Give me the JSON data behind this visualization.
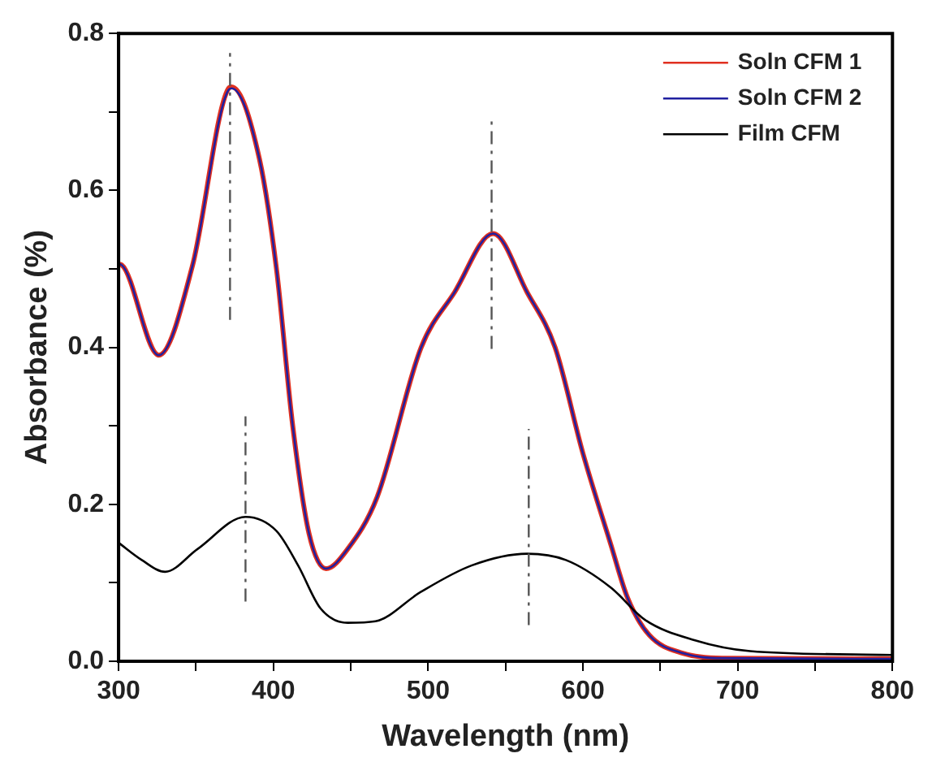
{
  "chart_data": {
    "type": "line",
    "xlabel": "Wavelength (nm)",
    "ylabel": "Absorbance (%)",
    "xlim": [
      300,
      800
    ],
    "xticks": [
      300,
      {
        "value": 350,
        "label": null
      },
      400,
      {
        "value": 450,
        "label": null
      },
      500,
      {
        "value": 550,
        "label": null
      },
      600,
      {
        "value": 650,
        "label": null
      },
      700,
      {
        "value": 750,
        "label": null
      },
      800
    ],
    "ylim": [
      0,
      0.8
    ],
    "yticks": [
      {
        "value": 0,
        "label": "0.0"
      },
      {
        "value": 0.1,
        "label": null
      },
      0.2,
      {
        "value": 0.3,
        "label": null
      },
      0.4,
      {
        "value": 0.5,
        "label": null
      },
      0.6,
      {
        "value": 0.7,
        "label": null
      },
      0.8
    ],
    "grid": false,
    "legend": "top right",
    "marker": "none",
    "series": [
      {
        "name": "Soln CFM 1",
        "color": "#e03020",
        "x": [
          300,
          302,
          326,
          347.6,
          371,
          373,
          391,
          402,
          412.5,
          423,
          434,
          448,
          467,
          495.5,
          517,
          542,
          564,
          582,
          600,
          618,
          629,
          643,
          665,
          690,
          800
        ],
        "values": [
          0.506,
          0.505,
          0.39,
          0.503,
          0.73,
          0.732,
          0.64,
          0.5,
          0.3,
          0.163,
          0.118,
          0.143,
          0.209,
          0.4,
          0.47,
          0.545,
          0.47,
          0.4,
          0.265,
          0.149,
          0.08,
          0.033,
          0.01,
          0.004,
          0.003
        ]
      },
      {
        "name": "Soln CFM 2",
        "color": "#2020a0",
        "x": [
          300,
          302,
          326,
          347.6,
          371,
          373,
          391,
          402,
          412.5,
          423,
          434,
          448,
          467,
          495.5,
          517,
          542,
          564,
          582,
          600,
          618,
          629,
          643,
          665,
          690,
          800
        ],
        "values": [
          0.506,
          0.505,
          0.39,
          0.503,
          0.728,
          0.73,
          0.64,
          0.5,
          0.3,
          0.163,
          0.118,
          0.143,
          0.209,
          0.4,
          0.47,
          0.545,
          0.47,
          0.4,
          0.265,
          0.149,
          0.08,
          0.033,
          0.01,
          0.004,
          0.003
        ]
      },
      {
        "name": "Film CFM",
        "color": "#000000",
        "x": [
          300,
          315,
          330,
          351,
          382,
          402,
          416,
          430.6,
          448,
          466,
          495,
          528,
          564,
          589,
          618,
          640,
          672,
          708,
          800
        ],
        "values": [
          0.151,
          0.129,
          0.114,
          0.143,
          0.184,
          0.166,
          0.122,
          0.067,
          0.049,
          0.051,
          0.088,
          0.122,
          0.137,
          0.129,
          0.094,
          0.053,
          0.027,
          0.013,
          0.008
        ]
      },
      {
        "color": "#555555",
        "line_style": "dashed",
        "x": [
          372,
          372
        ],
        "values": [
          0.435,
          0.775
        ]
      },
      {
        "color": "#555555",
        "line_style": "dashed",
        "x": [
          541,
          541
        ],
        "values": [
          0.398,
          0.694
        ]
      },
      {
        "color": "#555555",
        "line_style": "dashed",
        "x": [
          382,
          382
        ],
        "values": [
          0.076,
          0.312
        ]
      },
      {
        "color": "#555555",
        "line_style": "dashed",
        "x": [
          565,
          565
        ],
        "values": [
          0.046,
          0.296
        ]
      }
    ]
  }
}
